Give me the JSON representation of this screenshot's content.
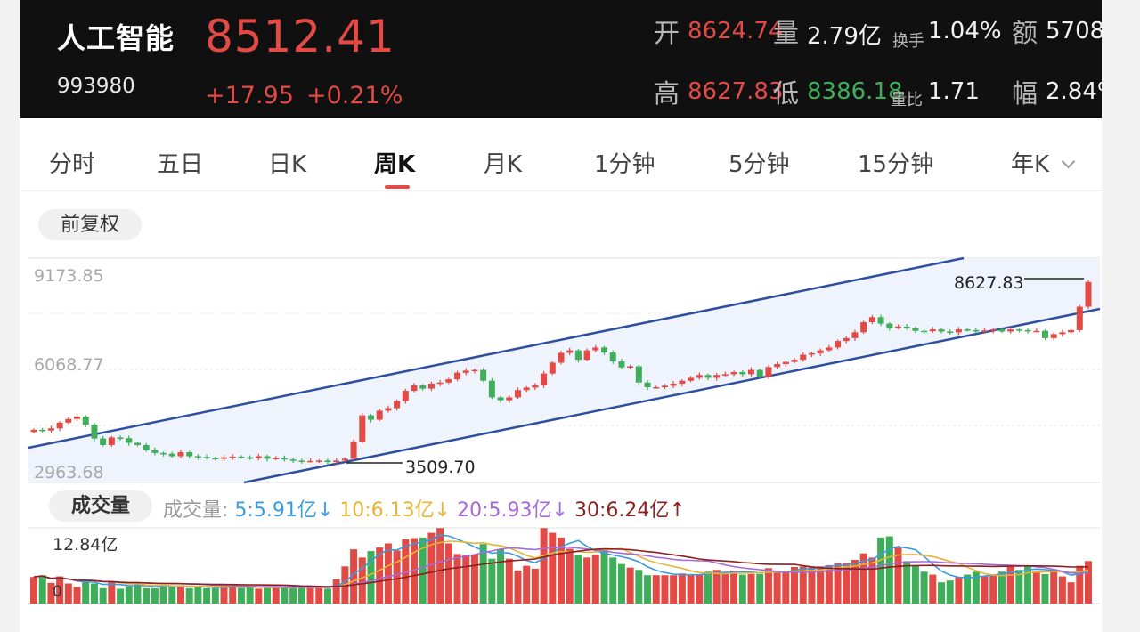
{
  "header": {
    "name": "人工智能",
    "code": "993980",
    "price": "8512.41",
    "change": "+17.95",
    "change_pct": "+0.21%",
    "stats": {
      "open_label": "开",
      "open": "8624.74",
      "volume_label": "量",
      "volume": "2.79亿",
      "turnover_label": "换手",
      "turnover": "1.04%",
      "amount_label": "额",
      "amount": "5708",
      "high_label": "高",
      "high": "8627.83",
      "low_label": "低",
      "low": "8386.18",
      "vol_ratio_label": "量比",
      "vol_ratio": "1.71",
      "amplitude_label": "幅",
      "amplitude": "2.84%"
    }
  },
  "tabs": [
    {
      "label": "分时"
    },
    {
      "label": "五日"
    },
    {
      "label": "日K"
    },
    {
      "label": "周K",
      "active": true
    },
    {
      "label": "月K"
    },
    {
      "label": "1分钟"
    },
    {
      "label": "5分钟"
    },
    {
      "label": "15分钟"
    },
    {
      "label": "年K",
      "dropdown": true
    }
  ],
  "adjust_label": "前复权",
  "volume_panel": {
    "pill_label": "成交量",
    "label": "成交量:",
    "ma5": "5:5.91亿",
    "ma10": "10:6.13亿",
    "ma20": "20:5.93亿",
    "ma30": "30:6.24亿",
    "max_label": "12.84亿",
    "zero_label": "0",
    "ma_colors": {
      "ma5": "#3b9be0",
      "ma10": "#e6b437",
      "ma20": "#a76bd9",
      "ma30": "#8c1f1f"
    }
  },
  "colors": {
    "up": "#e24a45",
    "down": "#3fae5a",
    "channel": "#2e4fa0",
    "channel_fill": "#eef3fc"
  },
  "chart_data": {
    "type": "candlestick",
    "y_ticks": [
      "9173.85",
      "6068.77",
      "2963.68"
    ],
    "ylim": [
      2963.68,
      9173.85
    ],
    "annotations": [
      {
        "label": "8627.83",
        "type": "high"
      },
      {
        "label": "3509.70",
        "type": "low"
      }
    ],
    "close": [
      4420,
      4400,
      4460,
      4620,
      4720,
      4790,
      4560,
      4180,
      4000,
      4210,
      4190,
      4060,
      4000,
      3860,
      3780,
      3760,
      3690,
      3800,
      3690,
      3670,
      3640,
      3620,
      3660,
      3680,
      3660,
      3640,
      3690,
      3620,
      3640,
      3600,
      3570,
      3560,
      3560,
      3570,
      3530,
      3570,
      3620,
      4100,
      4820,
      4700,
      4950,
      5020,
      5220,
      5500,
      5650,
      5560,
      5700,
      5730,
      5820,
      6000,
      6060,
      6080,
      5780,
      5320,
      5240,
      5320,
      5520,
      5590,
      5660,
      5980,
      6280,
      6550,
      6620,
      6360,
      6620,
      6700,
      6560,
      6320,
      6150,
      6180,
      5730,
      5600,
      5600,
      5640,
      5700,
      5780,
      5860,
      5940,
      5860,
      5940,
      5960,
      6020,
      5960,
      6080,
      5880,
      6160,
      6240,
      6300,
      6360,
      6500,
      6540,
      6620,
      6700,
      6880,
      6960,
      7120,
      7400,
      7540,
      7360,
      7240,
      7280,
      7240,
      7160,
      7150,
      7200,
      7140,
      7120,
      7200,
      7180,
      7150,
      7170,
      7200,
      7140,
      7200,
      7180,
      7160,
      7160,
      6960,
      7070,
      7120,
      7180,
      7830,
      8512.41
    ],
    "volume_yi": [
      4.5,
      4.8,
      3.5,
      4.6,
      3.4,
      2.8,
      4.0,
      3.4,
      2.6,
      3.6,
      2.5,
      2.9,
      3.6,
      2.6,
      2.6,
      3.1,
      3.0,
      3.1,
      2.6,
      2.8,
      2.6,
      2.6,
      3.1,
      2.9,
      2.6,
      2.8,
      2.5,
      2.9,
      2.7,
      2.8,
      2.6,
      2.7,
      2.7,
      2.8,
      2.5,
      4.1,
      6.3,
      9.2,
      7.8,
      8.9,
      9.5,
      10.2,
      9.0,
      10.9,
      11.1,
      11.2,
      12.0,
      12.8,
      10.2,
      8.4,
      8.2,
      8.3,
      10.1,
      7.6,
      9.2,
      7.6,
      5.6,
      6.4,
      5.9,
      12.8,
      12.0,
      11.2,
      9.3,
      8.2,
      7.8,
      8.3,
      9.1,
      7.8,
      6.7,
      6.1,
      5.7,
      4.8,
      4.8,
      4.8,
      4.8,
      5.1,
      4.9,
      4.9,
      5.4,
      5.7,
      5.4,
      5.6,
      4.9,
      5.0,
      5.0,
      6.0,
      5.5,
      5.4,
      6.2,
      6.3,
      6.2,
      6.3,
      6.5,
      6.9,
      6.9,
      7.4,
      8.5,
      7.8,
      11.2,
      11.4,
      9.5,
      7.2,
      6.4,
      5.4,
      4.9,
      3.6,
      3.9,
      4.5,
      4.9,
      5.4,
      4.6,
      4.7,
      5.4,
      6.4,
      5.7,
      6.4,
      5.3,
      5.0,
      5.5,
      4.6,
      3.6,
      6.4,
      7.2
    ]
  }
}
